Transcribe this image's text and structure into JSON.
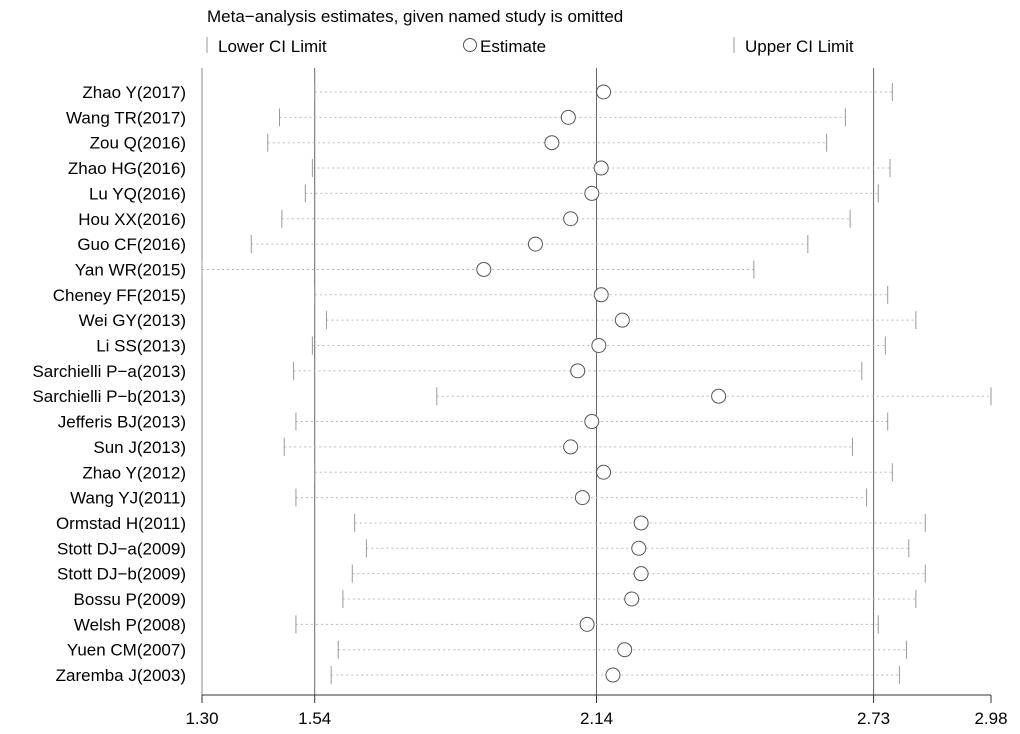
{
  "chart_data": {
    "type": "forest",
    "title": "Meta−analysis estimates, given named study is omitted",
    "legend": {
      "lower": "Lower CI Limit",
      "estimate": "Estimate",
      "upper": "Upper CI Limit"
    },
    "xlim": [
      1.3,
      2.98
    ],
    "xticks": [
      {
        "value": 1.3,
        "label": "1.30"
      },
      {
        "value": 1.54,
        "label": "1.54"
      },
      {
        "value": 2.14,
        "label": "2.14"
      },
      {
        "value": 2.73,
        "label": "2.73"
      },
      {
        "value": 2.98,
        "label": "2.98"
      }
    ],
    "reference_lines": [
      1.54,
      2.14,
      2.73
    ],
    "studies": [
      {
        "name": "Zhao Y(2017)",
        "lower": 1.54,
        "estimate": 2.155,
        "upper": 2.77
      },
      {
        "name": "Wang TR(2017)",
        "lower": 1.465,
        "estimate": 2.08,
        "upper": 2.67
      },
      {
        "name": "Zou Q(2016)",
        "lower": 1.44,
        "estimate": 2.045,
        "upper": 2.63
      },
      {
        "name": "Zhao HG(2016)",
        "lower": 1.535,
        "estimate": 2.15,
        "upper": 2.765
      },
      {
        "name": "Lu YQ(2016)",
        "lower": 1.52,
        "estimate": 2.13,
        "upper": 2.74
      },
      {
        "name": "Hou XX(2016)",
        "lower": 1.47,
        "estimate": 2.085,
        "upper": 2.68
      },
      {
        "name": "Guo CF(2016)",
        "lower": 1.405,
        "estimate": 2.01,
        "upper": 2.59
      },
      {
        "name": "Yan WR(2015)",
        "lower": 1.3,
        "estimate": 1.9,
        "upper": 2.475
      },
      {
        "name": "Cheney FF(2015)",
        "lower": 1.54,
        "estimate": 2.15,
        "upper": 2.76
      },
      {
        "name": "Wei GY(2013)",
        "lower": 1.565,
        "estimate": 2.195,
        "upper": 2.82
      },
      {
        "name": "Li SS(2013)",
        "lower": 1.535,
        "estimate": 2.145,
        "upper": 2.755
      },
      {
        "name": "Sarchielli P−a(2013)",
        "lower": 1.495,
        "estimate": 2.1,
        "upper": 2.705
      },
      {
        "name": "Sarchielli P−b(2013)",
        "lower": 1.8,
        "estimate": 2.4,
        "upper": 2.98
      },
      {
        "name": "Jefferis BJ(2013)",
        "lower": 1.5,
        "estimate": 2.13,
        "upper": 2.76
      },
      {
        "name": "Sun J(2013)",
        "lower": 1.475,
        "estimate": 2.085,
        "upper": 2.685
      },
      {
        "name": "Zhao Y(2012)",
        "lower": 1.54,
        "estimate": 2.155,
        "upper": 2.77
      },
      {
        "name": "Wang YJ(2011)",
        "lower": 1.5,
        "estimate": 2.11,
        "upper": 2.715
      },
      {
        "name": "Ormstad H(2011)",
        "lower": 1.625,
        "estimate": 2.235,
        "upper": 2.84
      },
      {
        "name": "Stott DJ−a(2009)",
        "lower": 1.65,
        "estimate": 2.23,
        "upper": 2.805
      },
      {
        "name": "Stott DJ−b(2009)",
        "lower": 1.62,
        "estimate": 2.235,
        "upper": 2.84
      },
      {
        "name": "Bossu P(2009)",
        "lower": 1.6,
        "estimate": 2.215,
        "upper": 2.82
      },
      {
        "name": "Welsh P(2008)",
        "lower": 1.5,
        "estimate": 2.12,
        "upper": 2.74
      },
      {
        "name": "Yuen CM(2007)",
        "lower": 1.59,
        "estimate": 2.2,
        "upper": 2.8
      },
      {
        "name": "Zaremba J(2003)",
        "lower": 1.575,
        "estimate": 2.175,
        "upper": 2.785
      }
    ]
  }
}
